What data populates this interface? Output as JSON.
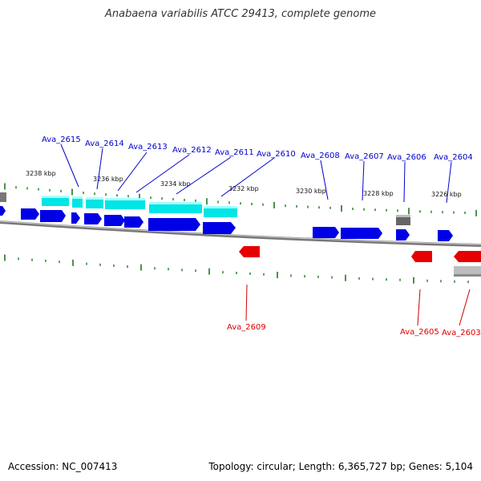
{
  "title": "Anabaena variabilis ATCC 29413, complete genome",
  "footer": {
    "accession": "Accession: NC_007413",
    "summary": "Topology: circular; Length: 6,365,727 bp; Genes: 5,104"
  },
  "colors": {
    "forward_gene": "#0000e6",
    "reverse_gene": "#e60000",
    "highlight_gene": "#00e0e0",
    "other_gene": "#7a7a7a",
    "tick": "#1a7a1a",
    "backbone": "#888888"
  },
  "scale_labels": [
    "3238 kbp",
    "3236 kbp",
    "3234 kbp",
    "3232 kbp",
    "3230 kbp",
    "3228 kbp",
    "3226 kbp"
  ],
  "forward_labels": [
    "Ava_2615",
    "Ava_2614",
    "Ava_2613",
    "Ava_2612",
    "Ava_2611",
    "Ava_2610",
    "Ava_2608",
    "Ava_2607",
    "Ava_2606",
    "Ava_2604"
  ],
  "reverse_labels": [
    "Ava_2609",
    "Ava_2605",
    "Ava_2603"
  ]
}
